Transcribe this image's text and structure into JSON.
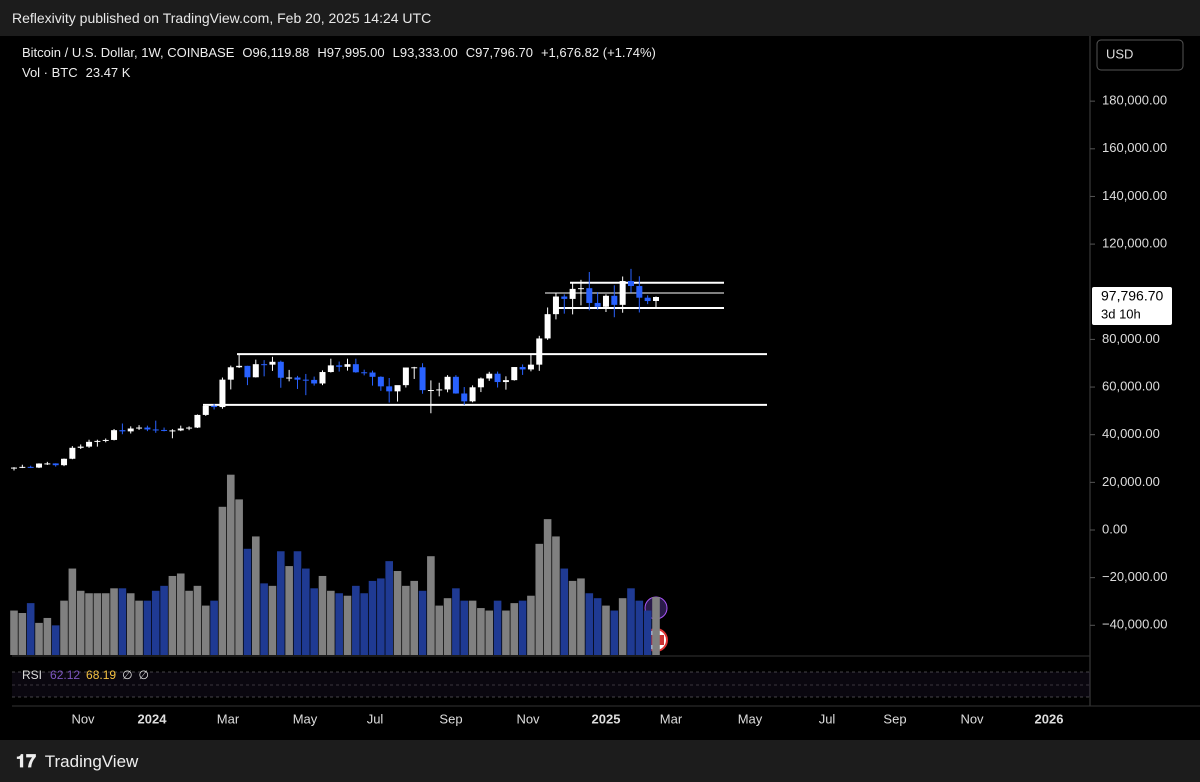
{
  "header": {
    "published": "Reflexivity published on TradingView.com, Feb 20, 2025 14:24 UTC"
  },
  "legend": {
    "symbol": "Bitcoin / U.S. Dollar, 1W, COINBASE",
    "open": "O96,119.88",
    "high": "H97,995.00",
    "low": "L93,333.00",
    "close": "C97,796.70",
    "change": "+1,676.82 (+1.74%)",
    "volume": "Vol · BTC",
    "volume_value": "23.47 K"
  },
  "currency": "USD",
  "price_ticks": [
    {
      "value": 180000,
      "label": "180,000.00"
    },
    {
      "value": 160000,
      "label": "160,000.00"
    },
    {
      "value": 140000,
      "label": "140,000.00"
    },
    {
      "value": 120000,
      "label": "120,000.00"
    },
    {
      "value": 80000,
      "label": "80,000.00"
    },
    {
      "value": 60000,
      "label": "60,000.00"
    },
    {
      "value": 40000,
      "label": "40,000.00"
    },
    {
      "value": 20000,
      "label": "20,000.00"
    },
    {
      "value": 0,
      "label": "0.00"
    },
    {
      "value": -20000,
      "label": "−20,000.00"
    },
    {
      "value": -40000,
      "label": "−40,000.00"
    }
  ],
  "price_tag": {
    "value": 97796.7,
    "label": "97,796.70",
    "countdown": "3d 10h"
  },
  "time_labels": [
    "Nov",
    "2024",
    "Mar",
    "May",
    "Jul",
    "Sep",
    "Nov",
    "2025",
    "Mar",
    "May",
    "Jul",
    "Sep",
    "Nov",
    "2026"
  ],
  "candles": [
    [
      25800,
      26400,
      25000,
      26200
    ],
    [
      26200,
      27400,
      26000,
      26500
    ],
    [
      26500,
      27000,
      26000,
      26200
    ],
    [
      26200,
      28000,
      26000,
      27900
    ],
    [
      27900,
      28600,
      27300,
      27950
    ],
    [
      27950,
      28000,
      26600,
      27200
    ],
    [
      27200,
      30000,
      26800,
      29900
    ],
    [
      29900,
      35200,
      29700,
      34500
    ],
    [
      34500,
      35900,
      34000,
      35000
    ],
    [
      35000,
      37900,
      34500,
      37000
    ],
    [
      37000,
      37900,
      35000,
      37400
    ],
    [
      37400,
      38400,
      36800,
      37800
    ],
    [
      37800,
      42400,
      37600,
      41900
    ],
    [
      41900,
      44700,
      40200,
      41400
    ],
    [
      41400,
      43500,
      40500,
      42600
    ],
    [
      42600,
      44000,
      42000,
      43000
    ],
    [
      43000,
      43800,
      41500,
      42200
    ],
    [
      42200,
      45900,
      40800,
      42000
    ],
    [
      42000,
      43000,
      41400,
      41600
    ],
    [
      41600,
      42300,
      38500,
      41800
    ],
    [
      41800,
      43800,
      41500,
      42600
    ],
    [
      42600,
      43500,
      41900,
      43000
    ],
    [
      43000,
      48500,
      42800,
      48300
    ],
    [
      48300,
      52800,
      47900,
      52100
    ],
    [
      52100,
      52900,
      50600,
      51600
    ],
    [
      51600,
      64000,
      50900,
      63100
    ],
    [
      63100,
      69000,
      59000,
      68300
    ],
    [
      68300,
      73800,
      68000,
      68900
    ],
    [
      68900,
      68900,
      60800,
      64100
    ],
    [
      64100,
      71500,
      64000,
      69600
    ],
    [
      69600,
      71300,
      64500,
      69400
    ],
    [
      69400,
      72700,
      66800,
      70600
    ],
    [
      70600,
      71100,
      59700,
      63900
    ],
    [
      63900,
      67200,
      62400,
      64000
    ],
    [
      64000,
      64700,
      59200,
      63100
    ],
    [
      63100,
      65500,
      56600,
      63000
    ],
    [
      63000,
      64400,
      60600,
      61500
    ],
    [
      61500,
      67000,
      60800,
      66300
    ],
    [
      66300,
      71900,
      66100,
      69100
    ],
    [
      69100,
      70700,
      66500,
      68500
    ],
    [
      68500,
      71900,
      66900,
      69600
    ],
    [
      69600,
      71900,
      66000,
      66200
    ],
    [
      66200,
      67300,
      64900,
      66100
    ],
    [
      66100,
      66900,
      60600,
      64300
    ],
    [
      64300,
      64500,
      58400,
      60300
    ],
    [
      60300,
      63800,
      53500,
      58200
    ],
    [
      58200,
      60200,
      53900,
      60800
    ],
    [
      60800,
      68000,
      59800,
      68200
    ],
    [
      68200,
      68500,
      63400,
      68300
    ],
    [
      68300,
      70000,
      57200,
      58700
    ],
    [
      58700,
      62800,
      49000,
      58750
    ],
    [
      58750,
      61800,
      56100,
      59000
    ],
    [
      59000,
      65000,
      57800,
      64300
    ],
    [
      64300,
      65000,
      57200,
      57300
    ],
    [
      57300,
      60000,
      52500,
      54000
    ],
    [
      54000,
      60700,
      53600,
      59900
    ],
    [
      59900,
      64000,
      57900,
      63600
    ],
    [
      63600,
      66400,
      62600,
      65600
    ],
    [
      65600,
      66500,
      59800,
      62100
    ],
    [
      62100,
      64500,
      58900,
      62900
    ],
    [
      62900,
      68400,
      62700,
      68400
    ],
    [
      68400,
      69500,
      65100,
      67400
    ],
    [
      67400,
      73600,
      66600,
      69400
    ],
    [
      69400,
      81500,
      66800,
      80400
    ],
    [
      80400,
      93400,
      79800,
      90600
    ],
    [
      90600,
      99500,
      88400,
      98000
    ],
    [
      98000,
      98900,
      90800,
      97000
    ],
    [
      97000,
      104000,
      90500,
      101200
    ],
    [
      101200,
      105000,
      94300,
      101500
    ],
    [
      101500,
      108300,
      92200,
      95300
    ],
    [
      95300,
      99900,
      92500,
      93700
    ],
    [
      93700,
      98900,
      91500,
      98300
    ],
    [
      98300,
      102700,
      89300,
      94500
    ],
    [
      94500,
      106400,
      91200,
      104500
    ],
    [
      104500,
      109600,
      99600,
      102400
    ],
    [
      102400,
      106500,
      91300,
      97500
    ],
    [
      97500,
      98500,
      94800,
      96100
    ],
    [
      96119.88,
      97995,
      93333,
      97796.7
    ]
  ],
  "volume": [
    18000,
    17000,
    21000,
    13000,
    15000,
    12000,
    22000,
    35000,
    26000,
    25000,
    25000,
    25000,
    27000,
    27000,
    25000,
    22000,
    22000,
    26000,
    28000,
    32000,
    33000,
    26000,
    28000,
    20000,
    22000,
    60000,
    73000,
    63000,
    43000,
    48000,
    29000,
    28000,
    42000,
    36000,
    42000,
    35000,
    27000,
    32000,
    26000,
    25000,
    24000,
    28000,
    25000,
    30000,
    31000,
    38000,
    34000,
    28000,
    30000,
    26000,
    40000,
    20000,
    23000,
    27000,
    22000,
    22000,
    19000,
    18000,
    22000,
    18000,
    21000,
    22000,
    24000,
    45000,
    55000,
    48000,
    35000,
    30000,
    31000,
    25000,
    23000,
    20000,
    18000,
    23000,
    27000,
    22000,
    18000,
    23470
  ],
  "levels": [
    73800,
    52500,
    103800,
    99500,
    93200
  ],
  "rsi": {
    "label": "RSI",
    "value": "62.12",
    "signal": "68.19",
    "extra1": "∅",
    "extra2": "∅"
  },
  "footer": {
    "brand": "TradingView"
  }
}
